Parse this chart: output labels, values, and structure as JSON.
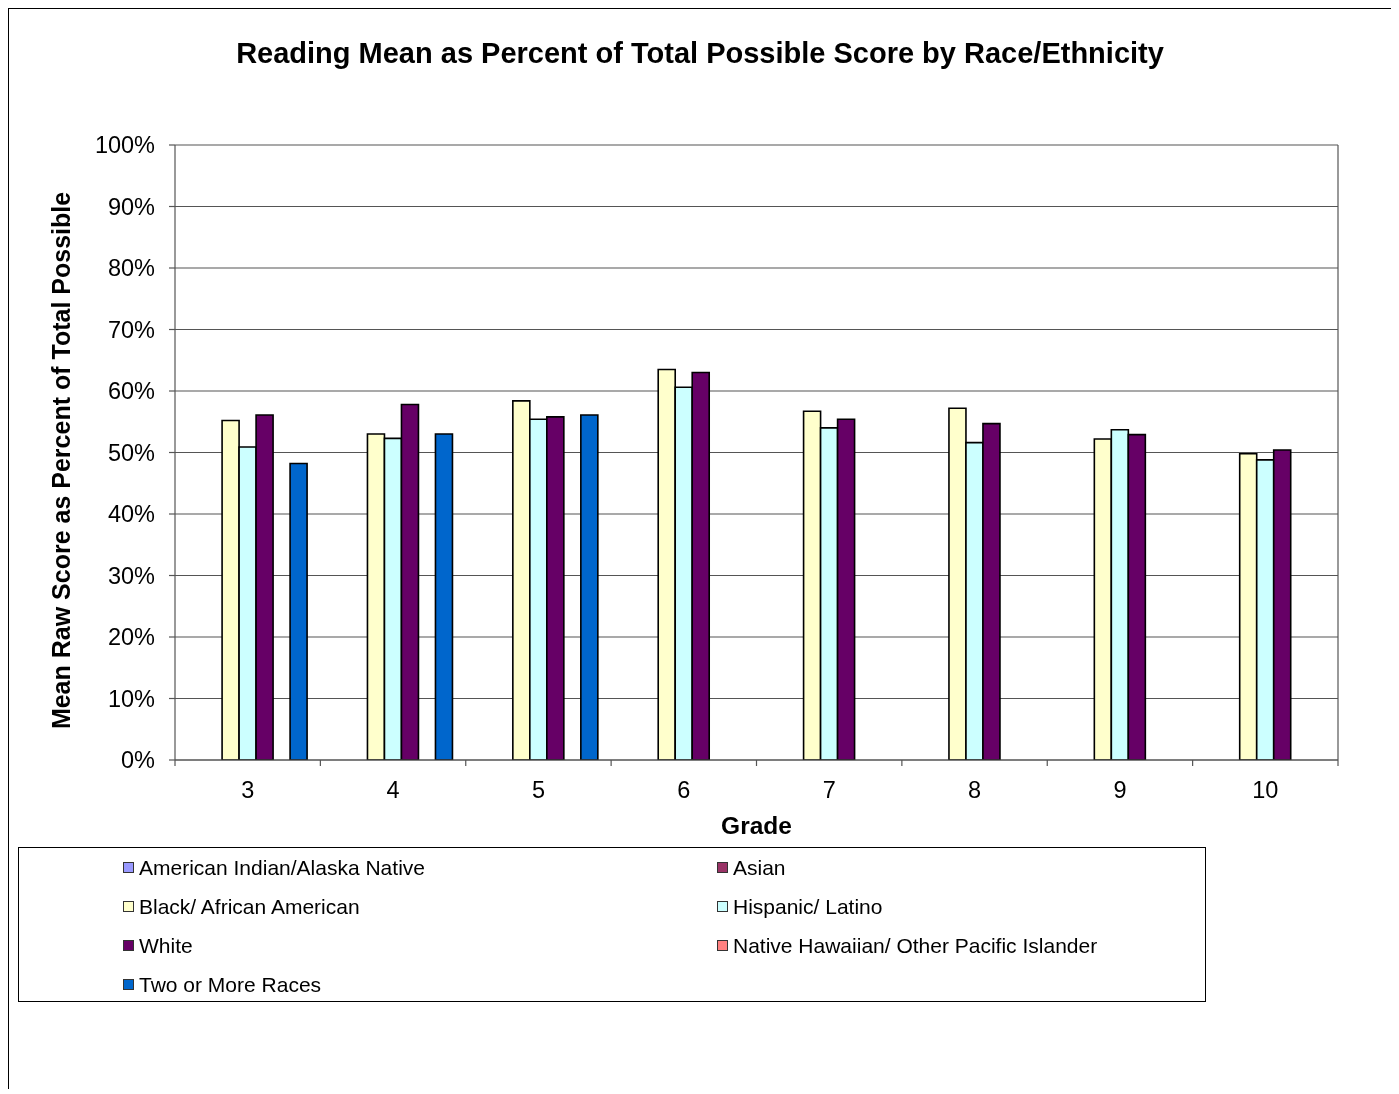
{
  "chart_data": {
    "type": "bar",
    "title": "Reading Mean as Percent of Total Possible Score by Race/Ethnicity",
    "xlabel": "Grade",
    "ylabel": "Mean Raw Score as Percent of Total Possible",
    "categories": [
      "3",
      "4",
      "5",
      "6",
      "7",
      "8",
      "9",
      "10"
    ],
    "series": [
      {
        "name": "American Indian/Alaska Native",
        "color": "#9999ff",
        "values": [
          null,
          null,
          null,
          null,
          null,
          null,
          null,
          null
        ]
      },
      {
        "name": "Asian",
        "color": "#993366",
        "values": [
          null,
          null,
          null,
          null,
          null,
          null,
          null,
          null
        ]
      },
      {
        "name": "Black/ African American",
        "color": "#ffffcc",
        "values": [
          55.2,
          53.0,
          58.4,
          63.5,
          56.7,
          57.2,
          52.2,
          49.8
        ]
      },
      {
        "name": "Hispanic/ Latino",
        "color": "#ccffff",
        "values": [
          50.9,
          52.3,
          55.4,
          60.6,
          54.0,
          51.6,
          53.7,
          48.8
        ]
      },
      {
        "name": "White",
        "color": "#660066",
        "values": [
          56.1,
          57.8,
          55.8,
          63.0,
          55.4,
          54.7,
          52.9,
          50.4
        ]
      },
      {
        "name": "Native Hawaiian/ Other Pacific Islander",
        "color": "#ff8080",
        "values": [
          null,
          null,
          null,
          null,
          null,
          null,
          null,
          null
        ]
      },
      {
        "name": "Two or More Races",
        "color": "#0066cc",
        "values": [
          48.2,
          53.0,
          56.1,
          null,
          null,
          null,
          null,
          null
        ]
      }
    ],
    "ylim": [
      0,
      100
    ],
    "yticks": [
      {
        "value": 0,
        "label": "0%"
      },
      {
        "value": 10,
        "label": "10%"
      },
      {
        "value": 20,
        "label": "20%"
      },
      {
        "value": 30,
        "label": "30%"
      },
      {
        "value": 40,
        "label": "40%"
      },
      {
        "value": 50,
        "label": "50%"
      },
      {
        "value": 60,
        "label": "60%"
      },
      {
        "value": 70,
        "label": "70%"
      },
      {
        "value": 80,
        "label": "80%"
      },
      {
        "value": 90,
        "label": "90%"
      },
      {
        "value": 100,
        "label": "100%"
      }
    ],
    "grid": "y",
    "legend": "bottom"
  }
}
